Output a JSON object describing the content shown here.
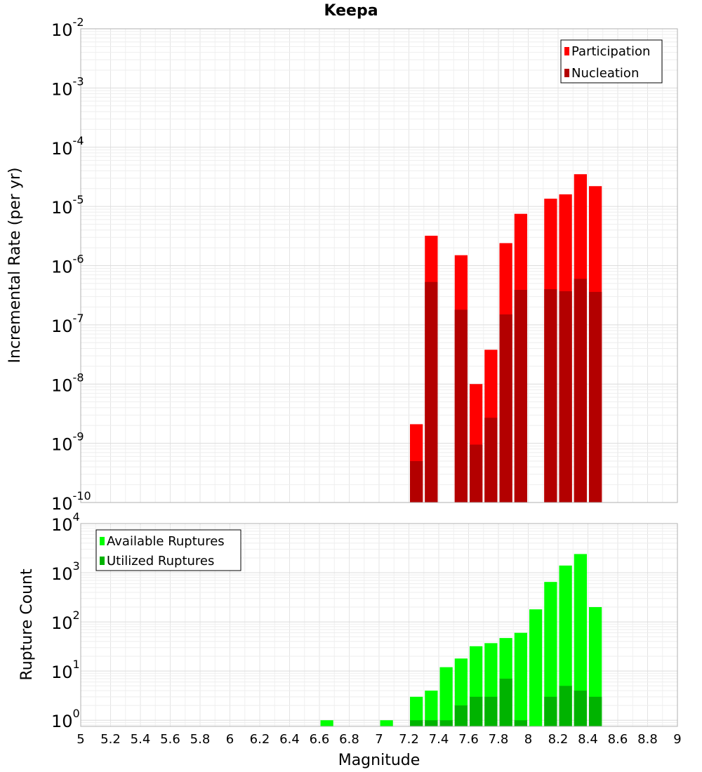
{
  "title": "Keepa",
  "xlabel": "Magnitude",
  "chart_data": [
    {
      "type": "bar",
      "scale": "log",
      "ylabel": "Incremental Rate (per yr)",
      "ylim": [
        1e-10,
        0.01
      ],
      "xlim": [
        5,
        9
      ],
      "bar_width": 0.1,
      "grid": true,
      "legend_placement": "top-right",
      "y_tick_exponents": [
        "-2",
        "-3",
        "-4",
        "-5",
        "-6",
        "-7",
        "-8",
        "-9",
        "-10"
      ],
      "series": [
        {
          "name": "Participation",
          "color": "#ff0000",
          "x": [
            7.25,
            7.35,
            7.55,
            7.65,
            7.75,
            7.85,
            7.95,
            8.15,
            8.25,
            8.35,
            8.45
          ],
          "values": [
            2.1e-09,
            3.2e-06,
            1.5e-06,
            1e-08,
            3.8e-08,
            2.4e-06,
            7.5e-06,
            1.35e-05,
            1.6e-05,
            3.5e-05,
            2.2e-05
          ]
        },
        {
          "name": "Nucleation",
          "color": "#b30000",
          "x": [
            7.25,
            7.35,
            7.55,
            7.65,
            7.75,
            7.85,
            7.95,
            8.15,
            8.25,
            8.35,
            8.45
          ],
          "values": [
            5e-10,
            5.3e-07,
            1.8e-07,
            9.5e-10,
            2.7e-09,
            1.5e-07,
            3.9e-07,
            4e-07,
            3.7e-07,
            6e-07,
            3.6e-07
          ]
        }
      ]
    },
    {
      "type": "bar",
      "scale": "log",
      "ylabel": "Rupture Count",
      "ylim": [
        0.75,
        10000
      ],
      "xlim": [
        5,
        9
      ],
      "bar_width": 0.1,
      "grid": true,
      "legend_placement": "top-left",
      "y_tick_exponents": [
        "4",
        "3",
        "2",
        "1",
        "0"
      ],
      "series": [
        {
          "name": "Available Ruptures",
          "color": "#00ff00",
          "x": [
            6.65,
            7.05,
            7.25,
            7.35,
            7.45,
            7.55,
            7.65,
            7.75,
            7.85,
            7.95,
            8.05,
            8.15,
            8.25,
            8.35,
            8.45
          ],
          "values": [
            1,
            1,
            3,
            4,
            12,
            18,
            32,
            37,
            47,
            60,
            180,
            650,
            1400,
            2400,
            200
          ]
        },
        {
          "name": "Utilized Ruptures",
          "color": "#00b300",
          "x": [
            7.25,
            7.35,
            7.45,
            7.55,
            7.65,
            7.75,
            7.85,
            7.95,
            8.15,
            8.25,
            8.35,
            8.45
          ],
          "values": [
            1,
            1,
            1,
            2,
            3,
            3,
            7,
            1,
            3,
            5,
            4,
            3
          ]
        }
      ]
    }
  ],
  "x_tick_labels": [
    "5",
    "5.2",
    "5.4",
    "5.6",
    "5.8",
    "6",
    "6.2",
    "6.4",
    "6.6",
    "6.8",
    "7",
    "7.2",
    "7.4",
    "7.6",
    "7.8",
    "8",
    "8.2",
    "8.4",
    "8.6",
    "8.8",
    "9"
  ],
  "y_tick_base": "10"
}
